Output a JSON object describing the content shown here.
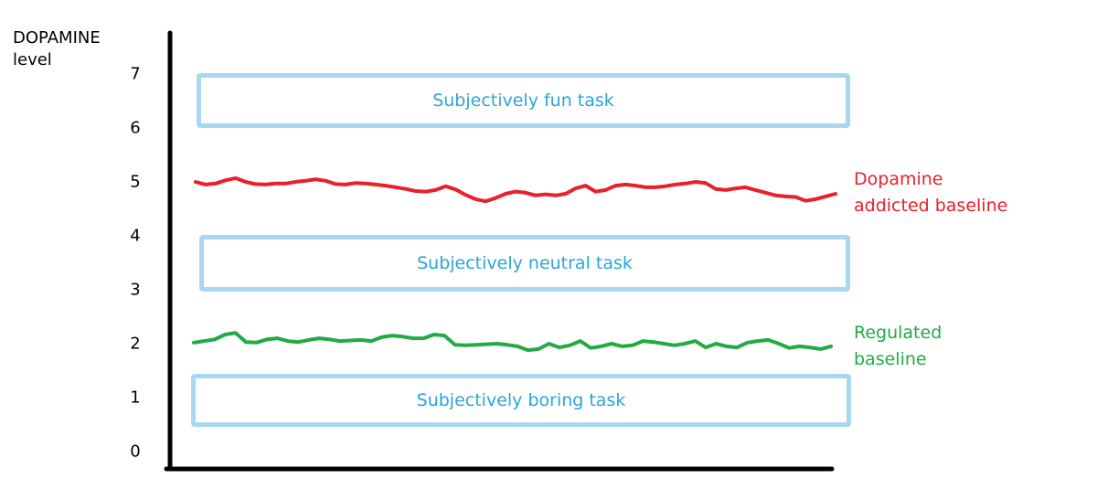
{
  "axis": {
    "ylabel_line1": "DOPAMINE",
    "ylabel_line2": "level",
    "ticks": [
      "0",
      "1",
      "2",
      "3",
      "4",
      "5",
      "6",
      "7"
    ]
  },
  "bands": {
    "fun": "Subjectively fun task",
    "neutral": "Subjectively neutral task",
    "boring": "Subjectively boring task",
    "color_border": "#a8d8f0",
    "color_text": "#2aa4dc"
  },
  "lines": {
    "addicted": {
      "label_line1": "Dopamine",
      "label_line2": "addicted baseline",
      "color": "#e8202a",
      "values": [
        5.0,
        4.95,
        4.97,
        5.03,
        5.07,
        5.0,
        4.96,
        4.95,
        4.97,
        4.97,
        5.0,
        5.02,
        5.05,
        5.02,
        4.96,
        4.95,
        4.98,
        4.97,
        4.95,
        4.93,
        4.9,
        4.87,
        4.83,
        4.82,
        4.85,
        4.92,
        4.86,
        4.76,
        4.68,
        4.64,
        4.7,
        4.78,
        4.82,
        4.8,
        4.75,
        4.77,
        4.75,
        4.78,
        4.88,
        4.93,
        4.82,
        4.85,
        4.93,
        4.95,
        4.93,
        4.9,
        4.9,
        4.92,
        4.95,
        4.97,
        5.0,
        4.98,
        4.87,
        4.85,
        4.88,
        4.9,
        4.85,
        4.8,
        4.75,
        4.73,
        4.72,
        4.65,
        4.68,
        4.73,
        4.78
      ]
    },
    "regulated": {
      "label_line1": "Regulated",
      "label_line2": "baseline",
      "color": "#22aa44",
      "values": [
        2.02,
        2.05,
        2.08,
        2.17,
        2.2,
        2.03,
        2.02,
        2.08,
        2.1,
        2.05,
        2.03,
        2.07,
        2.1,
        2.08,
        2.05,
        2.06,
        2.07,
        2.05,
        2.12,
        2.15,
        2.13,
        2.1,
        2.1,
        2.17,
        2.15,
        1.98,
        1.97,
        1.98,
        1.99,
        2.0,
        1.98,
        1.95,
        1.88,
        1.9,
        2.0,
        1.93,
        1.97,
        2.05,
        1.92,
        1.95,
        2.0,
        1.95,
        1.97,
        2.05,
        2.03,
        2.0,
        1.97,
        2.0,
        2.05,
        1.93,
        2.0,
        1.95,
        1.93,
        2.02,
        2.05,
        2.07,
        2.0,
        1.92,
        1.95,
        1.93,
        1.9,
        1.95
      ]
    }
  }
}
